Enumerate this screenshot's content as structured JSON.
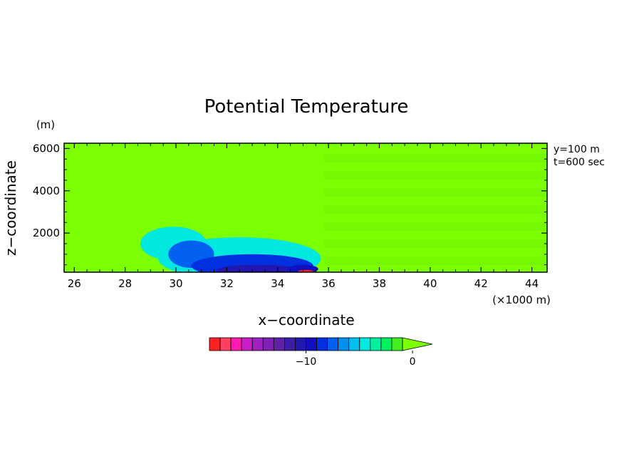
{
  "chart_data": {
    "type": "heatmap",
    "title": "Potential Temperature",
    "xlabel": "x−coordinate",
    "ylabel": "z−coordinate",
    "x_unit": "(×1000 m)",
    "y_unit": "(m)",
    "xlim": [
      25.6,
      44.6
    ],
    "ylim": [
      150,
      6250
    ],
    "x_ticks": [
      26,
      28,
      30,
      32,
      34,
      36,
      38,
      40,
      42,
      44
    ],
    "y_ticks": [
      2000,
      4000,
      6000
    ],
    "annotations": [
      "y=100 m",
      "t=600 sec"
    ],
    "background_color": "#7cff00",
    "colorbar": {
      "colors": [
        "#ff2020",
        "#ff4060",
        "#ff1ab0",
        "#c81ec8",
        "#a020c0",
        "#8020b4",
        "#6020a8",
        "#3c1ca8",
        "#2018b0",
        "#1010c0",
        "#0030e0",
        "#0060f0",
        "#0090f0",
        "#00c0f0",
        "#00e8e0",
        "#00f0a0",
        "#00f060",
        "#40f020",
        "#7cff00"
      ],
      "tick_labels": [
        "−10",
        "0"
      ],
      "tick_indices": [
        9,
        19
      ]
    },
    "cold_pool_regions": [
      {
        "x": 29.9,
        "z": 1500,
        "rx": 1.3,
        "rz": 800,
        "color": "#00e8e0"
      },
      {
        "x": 32.5,
        "z": 800,
        "rx": 3.2,
        "rz": 1000,
        "color": "#00e8e0"
      },
      {
        "x": 30.6,
        "z": 1000,
        "rx": 0.9,
        "rz": 650,
        "color": "#0060f0"
      },
      {
        "x": 33.0,
        "z": 450,
        "rx": 2.4,
        "rz": 550,
        "color": "#0030e0"
      },
      {
        "x": 33.2,
        "z": 250,
        "rx": 1.6,
        "rz": 250,
        "color": "#2018b0"
      },
      {
        "x": 35.0,
        "z": 300,
        "rx": 0.6,
        "rz": 200,
        "color": "#1010c0"
      },
      {
        "x": 35.1,
        "z": 180,
        "rx": 0.3,
        "rz": 80,
        "color": "#ff2020"
      }
    ]
  }
}
